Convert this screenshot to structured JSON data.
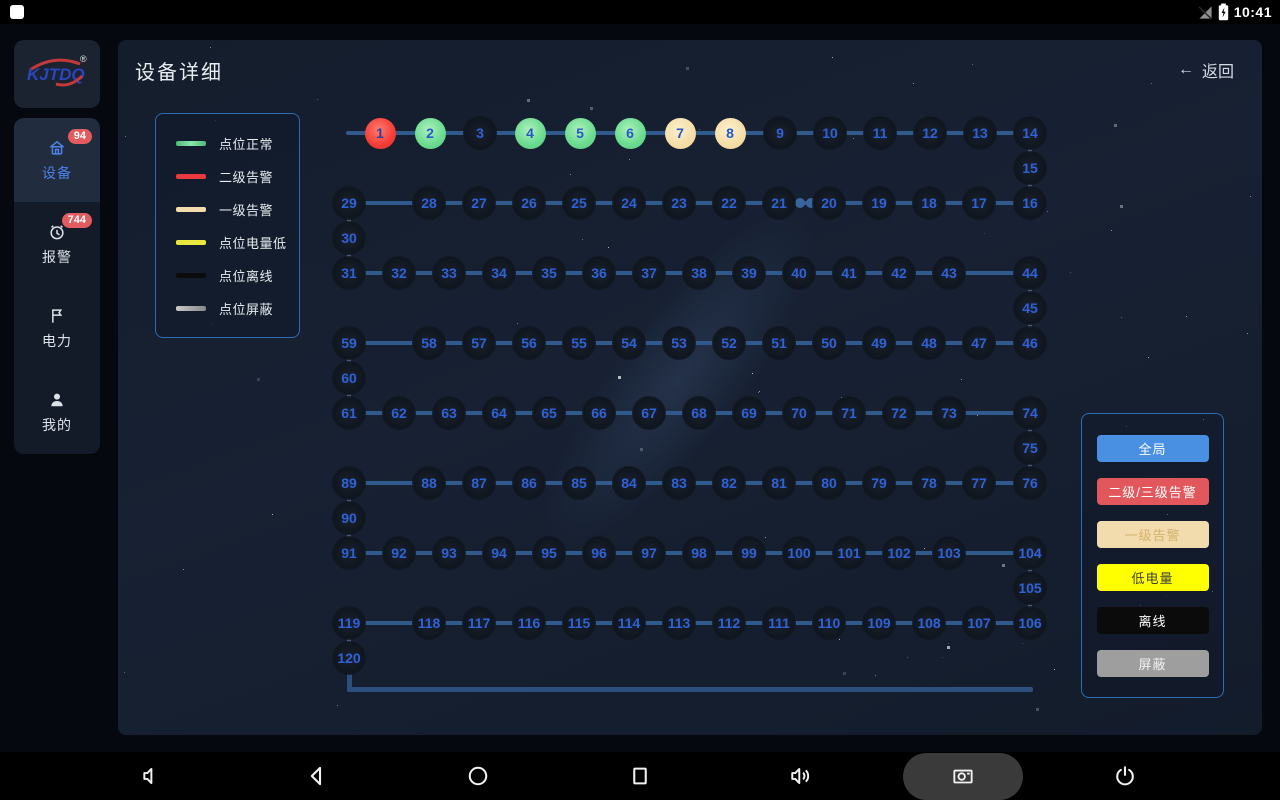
{
  "status_bar": {
    "time": "10:41"
  },
  "sidebar": {
    "logo": {
      "text": "KJTDQ",
      "reg_mark": "®"
    },
    "items": [
      {
        "id": "devices",
        "label": "设备",
        "badge": "94",
        "active": true,
        "icon": "device-home-icon"
      },
      {
        "id": "alarms",
        "label": "报警",
        "badge": "744",
        "active": false,
        "icon": "alarm-clock-icon"
      },
      {
        "id": "power",
        "label": "电力",
        "badge": "",
        "active": false,
        "icon": "flag-icon"
      },
      {
        "id": "profile",
        "label": "我的",
        "badge": "",
        "active": false,
        "icon": "person-icon"
      }
    ]
  },
  "header": {
    "title": "设备详细",
    "back_arrow": "←",
    "back_label": "返回"
  },
  "legend": {
    "items": [
      {
        "key": "normal",
        "label": "点位正常",
        "color": "#5fcd84"
      },
      {
        "key": "alarm2",
        "label": "二级告警",
        "color": "#e8393e"
      },
      {
        "key": "alarm1",
        "label": "一级告警",
        "color": "#f1dcab"
      },
      {
        "key": "lowbatt",
        "label": "点位电量低",
        "color": "#e9e73e"
      },
      {
        "key": "offline",
        "label": "点位离线",
        "color": "#0c0c0c"
      },
      {
        "key": "shield",
        "label": "点位屏蔽",
        "color": "#a6a6a6"
      }
    ]
  },
  "filter_panel": {
    "buttons": [
      {
        "id": "global",
        "label": "全局",
        "bg": "#4a90e2",
        "fg": "#ffffff"
      },
      {
        "id": "alarm23",
        "label": "二级/三级告警",
        "bg": "#e2575b",
        "fg": "#ffffff"
      },
      {
        "id": "alarm1",
        "label": "一级告警",
        "bg": "#f2dbac",
        "fg": "#d4b36e"
      },
      {
        "id": "lowbatt",
        "label": "低电量",
        "bg": "#ffff00",
        "fg": "#3f3f3f"
      },
      {
        "id": "offline",
        "label": "离线",
        "bg": "#0b0b0b",
        "fg": "#ffffff"
      },
      {
        "id": "shield",
        "label": "屏蔽",
        "bg": "#9e9e9e",
        "fg": "#f2f2f2"
      }
    ]
  },
  "node_map": {
    "count": 120,
    "default_status": "offline",
    "status_overrides": {
      "1": "alarm2",
      "2": "normal",
      "3": "offline",
      "4": "normal",
      "5": "normal",
      "6": "normal",
      "7": "alarm1",
      "8": "alarm1"
    }
  },
  "nav_bar": {
    "icons": [
      "volume-down-icon",
      "back-icon",
      "home-icon",
      "recents-icon",
      "volume-up-icon",
      "camera-icon",
      "power-icon"
    ]
  }
}
